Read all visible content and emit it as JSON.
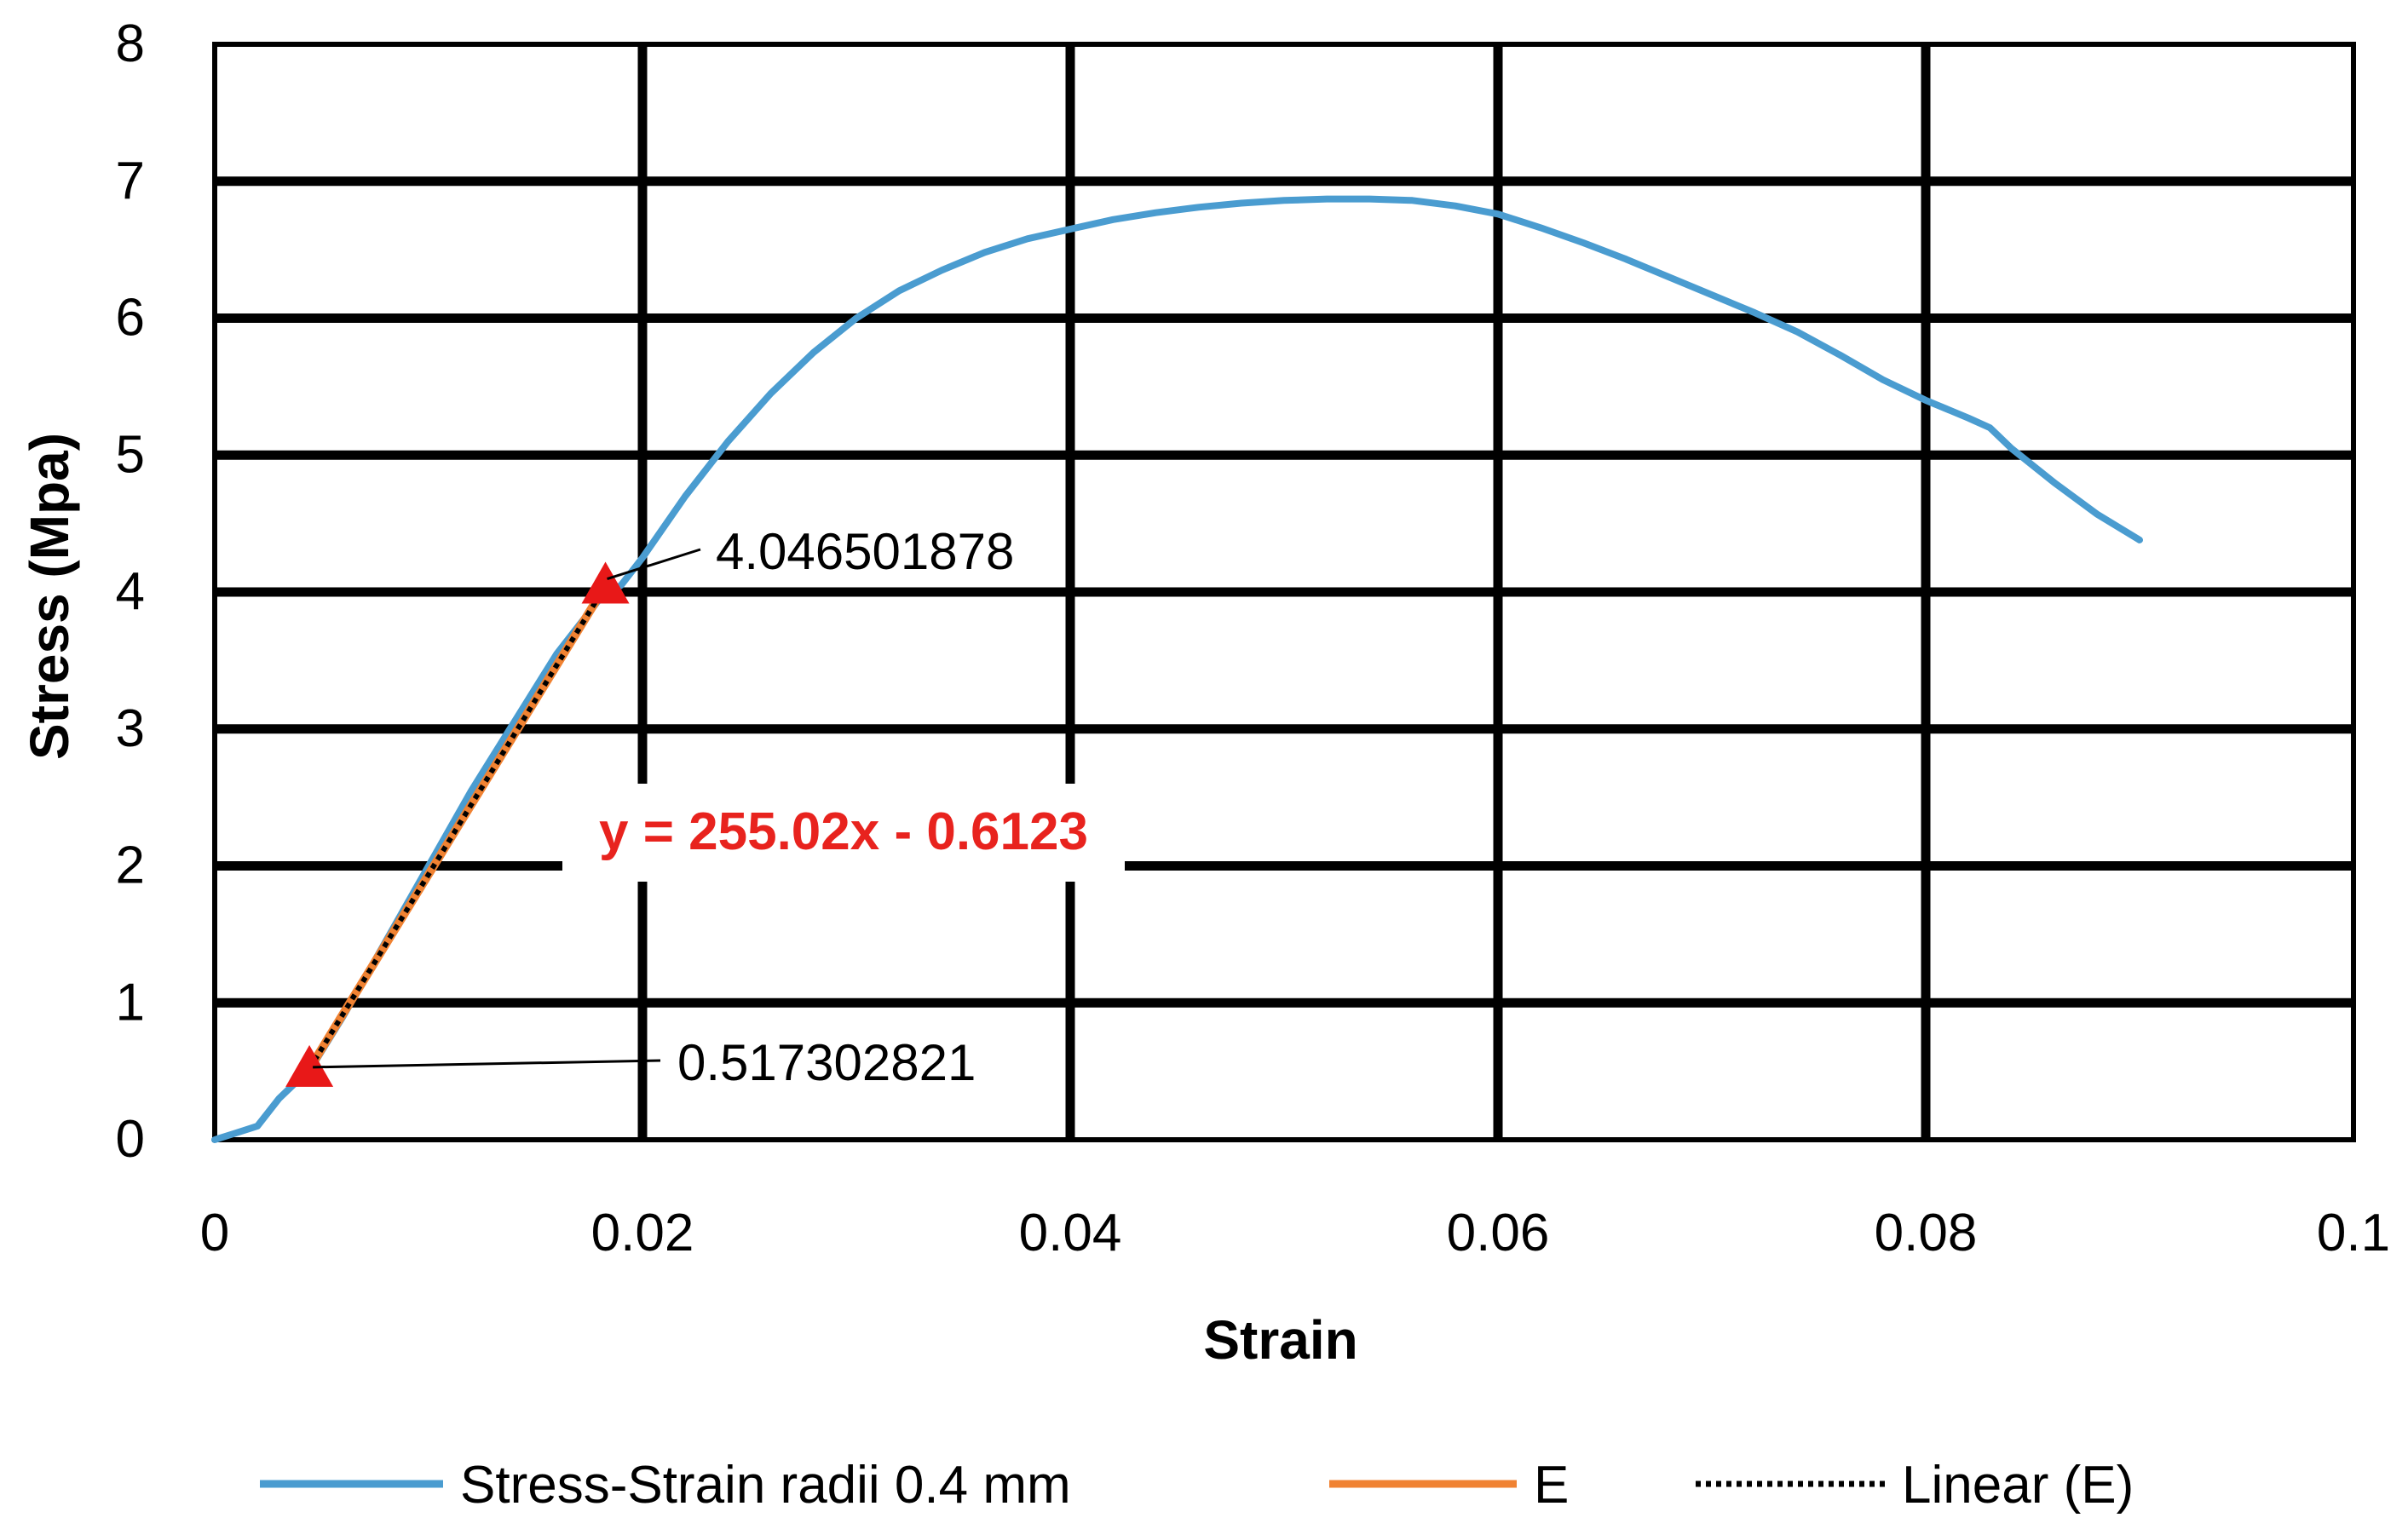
{
  "chart_data": {
    "type": "line",
    "xlabel": "Strain",
    "ylabel": "Stress (Mpa)",
    "xlim": [
      0,
      0.1
    ],
    "ylim": [
      0,
      8
    ],
    "x_ticks": [
      0,
      0.02,
      0.04,
      0.06,
      0.08,
      0.1
    ],
    "x_tick_labels": [
      "0",
      "0.02",
      "0.04",
      "0.06",
      "0.08",
      "0.1"
    ],
    "y_ticks": [
      0,
      1,
      2,
      3,
      4,
      5,
      6,
      7,
      8
    ],
    "y_tick_labels": [
      "0",
      "1",
      "2",
      "3",
      "4",
      "5",
      "6",
      "7",
      "8"
    ],
    "grid": "major x and y gridlines",
    "legend_position": "bottom",
    "series": [
      {
        "name": "Stress-Strain radii 0.4 mm",
        "color": "#4a9cd0",
        "style": "solid",
        "x": [
          0,
          0.001,
          0.002,
          0.003,
          0.0038,
          0.0045,
          0.006,
          0.008,
          0.01,
          0.012,
          0.014,
          0.016,
          0.018,
          0.019,
          0.02,
          0.022,
          0.024,
          0.026,
          0.028,
          0.03,
          0.032,
          0.034,
          0.036,
          0.038,
          0.04,
          0.042,
          0.044,
          0.046,
          0.048,
          0.05,
          0.052,
          0.054,
          0.056,
          0.058,
          0.06,
          0.062,
          0.064,
          0.066,
          0.068,
          0.07,
          0.072,
          0.074,
          0.076,
          0.078,
          0.08,
          0.082,
          0.083,
          0.084,
          0.086,
          0.088,
          0.09
        ],
        "y": [
          0,
          0.05,
          0.1,
          0.3,
          0.42,
          0.52,
          0.9,
          1.45,
          2.0,
          2.55,
          3.05,
          3.55,
          3.95,
          4.05,
          4.25,
          4.7,
          5.1,
          5.45,
          5.75,
          6.0,
          6.2,
          6.35,
          6.48,
          6.58,
          6.65,
          6.72,
          6.77,
          6.81,
          6.84,
          6.86,
          6.87,
          6.87,
          6.86,
          6.82,
          6.76,
          6.66,
          6.55,
          6.43,
          6.3,
          6.17,
          6.04,
          5.9,
          5.73,
          5.55,
          5.4,
          5.27,
          5.2,
          5.05,
          4.8,
          4.57,
          4.38
        ]
      },
      {
        "name": "E",
        "color": "#f08232",
        "style": "solid",
        "x": [
          0.004426,
          0.018269
        ],
        "y": [
          0.517302821,
          4.046501878
        ],
        "marker": "triangle",
        "marker_color": "#e81818"
      },
      {
        "name": "Linear (E)",
        "color": "#000000",
        "style": "dotted",
        "trendline": {
          "slope": 255.02,
          "intercept": -0.6123
        },
        "x": [
          0.004426,
          0.018269
        ],
        "y": [
          0.517302821,
          4.046501878
        ]
      }
    ],
    "annotations": [
      {
        "text": "4.046501878",
        "target_series": "E",
        "target_index": 1
      },
      {
        "text": "0.517302821",
        "target_series": "E",
        "target_index": 0
      },
      {
        "text": "y = 255.02x - 0.6123",
        "color": "#e8231e",
        "kind": "trendline-equation"
      }
    ]
  }
}
